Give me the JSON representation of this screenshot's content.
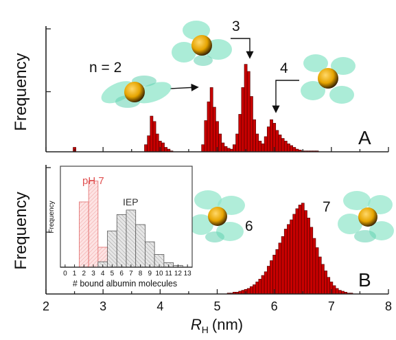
{
  "chart_data": {
    "type": "bar",
    "x_axis": {
      "label_main": "R",
      "label_sub": "H",
      "label_unit": "(nm)",
      "ticks": [
        "2",
        "3",
        "4",
        "5",
        "6",
        "7",
        "8"
      ],
      "xlim": [
        2,
        8
      ]
    },
    "bin_width": 0.05,
    "panels": [
      {
        "id": "A",
        "panel_label": "A",
        "ylabel": "Frequency",
        "values_relative": {
          "x": [
            2.5,
            3.75,
            3.8,
            3.85,
            3.9,
            3.95,
            4.0,
            4.05,
            4.1,
            4.15,
            4.2,
            4.75,
            4.8,
            4.85,
            4.9,
            4.95,
            5.0,
            5.05,
            5.1,
            5.15,
            5.2,
            5.25,
            5.3,
            5.35,
            5.4,
            5.45,
            5.5,
            5.55,
            5.6,
            5.65,
            5.7,
            5.75,
            5.8,
            5.85,
            5.9,
            5.95,
            6.0,
            6.05,
            6.1,
            6.15,
            6.2,
            6.25,
            6.3,
            6.35,
            6.4,
            6.45,
            6.5,
            6.55,
            6.6,
            6.65,
            6.7,
            6.75
          ],
          "y": [
            0.05,
            0.08,
            0.18,
            0.4,
            0.34,
            0.2,
            0.12,
            0.1,
            0.05,
            0.03,
            0.01,
            0.08,
            0.35,
            0.56,
            0.72,
            0.5,
            0.34,
            0.2,
            0.1,
            0.06,
            0.04,
            0.03,
            0.08,
            0.2,
            0.42,
            0.72,
            0.98,
            0.9,
            0.62,
            0.36,
            0.2,
            0.12,
            0.09,
            0.17,
            0.28,
            0.36,
            0.32,
            0.24,
            0.19,
            0.15,
            0.12,
            0.09,
            0.07,
            0.05,
            0.03,
            0.02,
            0.01,
            0.01,
            0.01,
            0.01,
            0.01,
            0.01
          ]
        },
        "annotations": [
          {
            "text": "n = 2",
            "points_to_x": 4.8
          },
          {
            "text": "3",
            "points_to_x": 5.65
          },
          {
            "text": "4",
            "points_to_x": 6.2
          }
        ]
      },
      {
        "id": "B",
        "panel_label": "B",
        "ylabel": "Frequency",
        "values_relative": {
          "x": [
            5.2,
            5.25,
            5.3,
            5.35,
            5.4,
            5.45,
            5.5,
            5.55,
            5.6,
            5.65,
            5.7,
            5.75,
            5.8,
            5.85,
            5.9,
            5.95,
            6.0,
            6.05,
            6.1,
            6.15,
            6.2,
            6.25,
            6.3,
            6.35,
            6.4,
            6.45,
            6.5,
            6.55,
            6.6,
            6.65,
            6.7,
            6.75,
            6.8,
            6.85,
            6.9,
            6.95,
            7.0,
            7.05,
            7.1,
            7.15,
            7.2,
            7.25,
            7.3,
            7.35
          ],
          "y": [
            0.01,
            0.01,
            0.02,
            0.02,
            0.03,
            0.04,
            0.05,
            0.06,
            0.08,
            0.1,
            0.13,
            0.16,
            0.2,
            0.24,
            0.3,
            0.36,
            0.42,
            0.48,
            0.55,
            0.62,
            0.7,
            0.75,
            0.8,
            0.86,
            0.92,
            0.96,
            0.98,
            0.9,
            0.82,
            0.72,
            0.6,
            0.5,
            0.4,
            0.32,
            0.25,
            0.18,
            0.13,
            0.09,
            0.06,
            0.04,
            0.03,
            0.02,
            0.01,
            0.01
          ]
        },
        "annotations": [
          {
            "text": "6"
          },
          {
            "text": "7"
          }
        ]
      }
    ],
    "inset": {
      "type": "bar",
      "ylabel": "Frequency",
      "xlabel": "# bound albumin molecules",
      "ticks": [
        "0",
        "1",
        "2",
        "3",
        "4",
        "5",
        "6",
        "7",
        "8",
        "9",
        "10",
        "11",
        "12",
        "13"
      ],
      "xlim": [
        -0.5,
        13.5
      ],
      "series": [
        {
          "name": "pH 7",
          "color": "#e06a6a",
          "x": [
            2,
            3,
            4,
            5
          ],
          "y": [
            0.72,
            0.95,
            0.22,
            0.04
          ]
        },
        {
          "name": "IEP",
          "color": "#555555",
          "x": [
            4,
            5,
            6,
            7,
            8,
            9,
            10,
            11,
            12
          ],
          "y": [
            0.06,
            0.4,
            0.58,
            0.63,
            0.47,
            0.28,
            0.14,
            0.05,
            0.02
          ]
        }
      ]
    }
  }
}
